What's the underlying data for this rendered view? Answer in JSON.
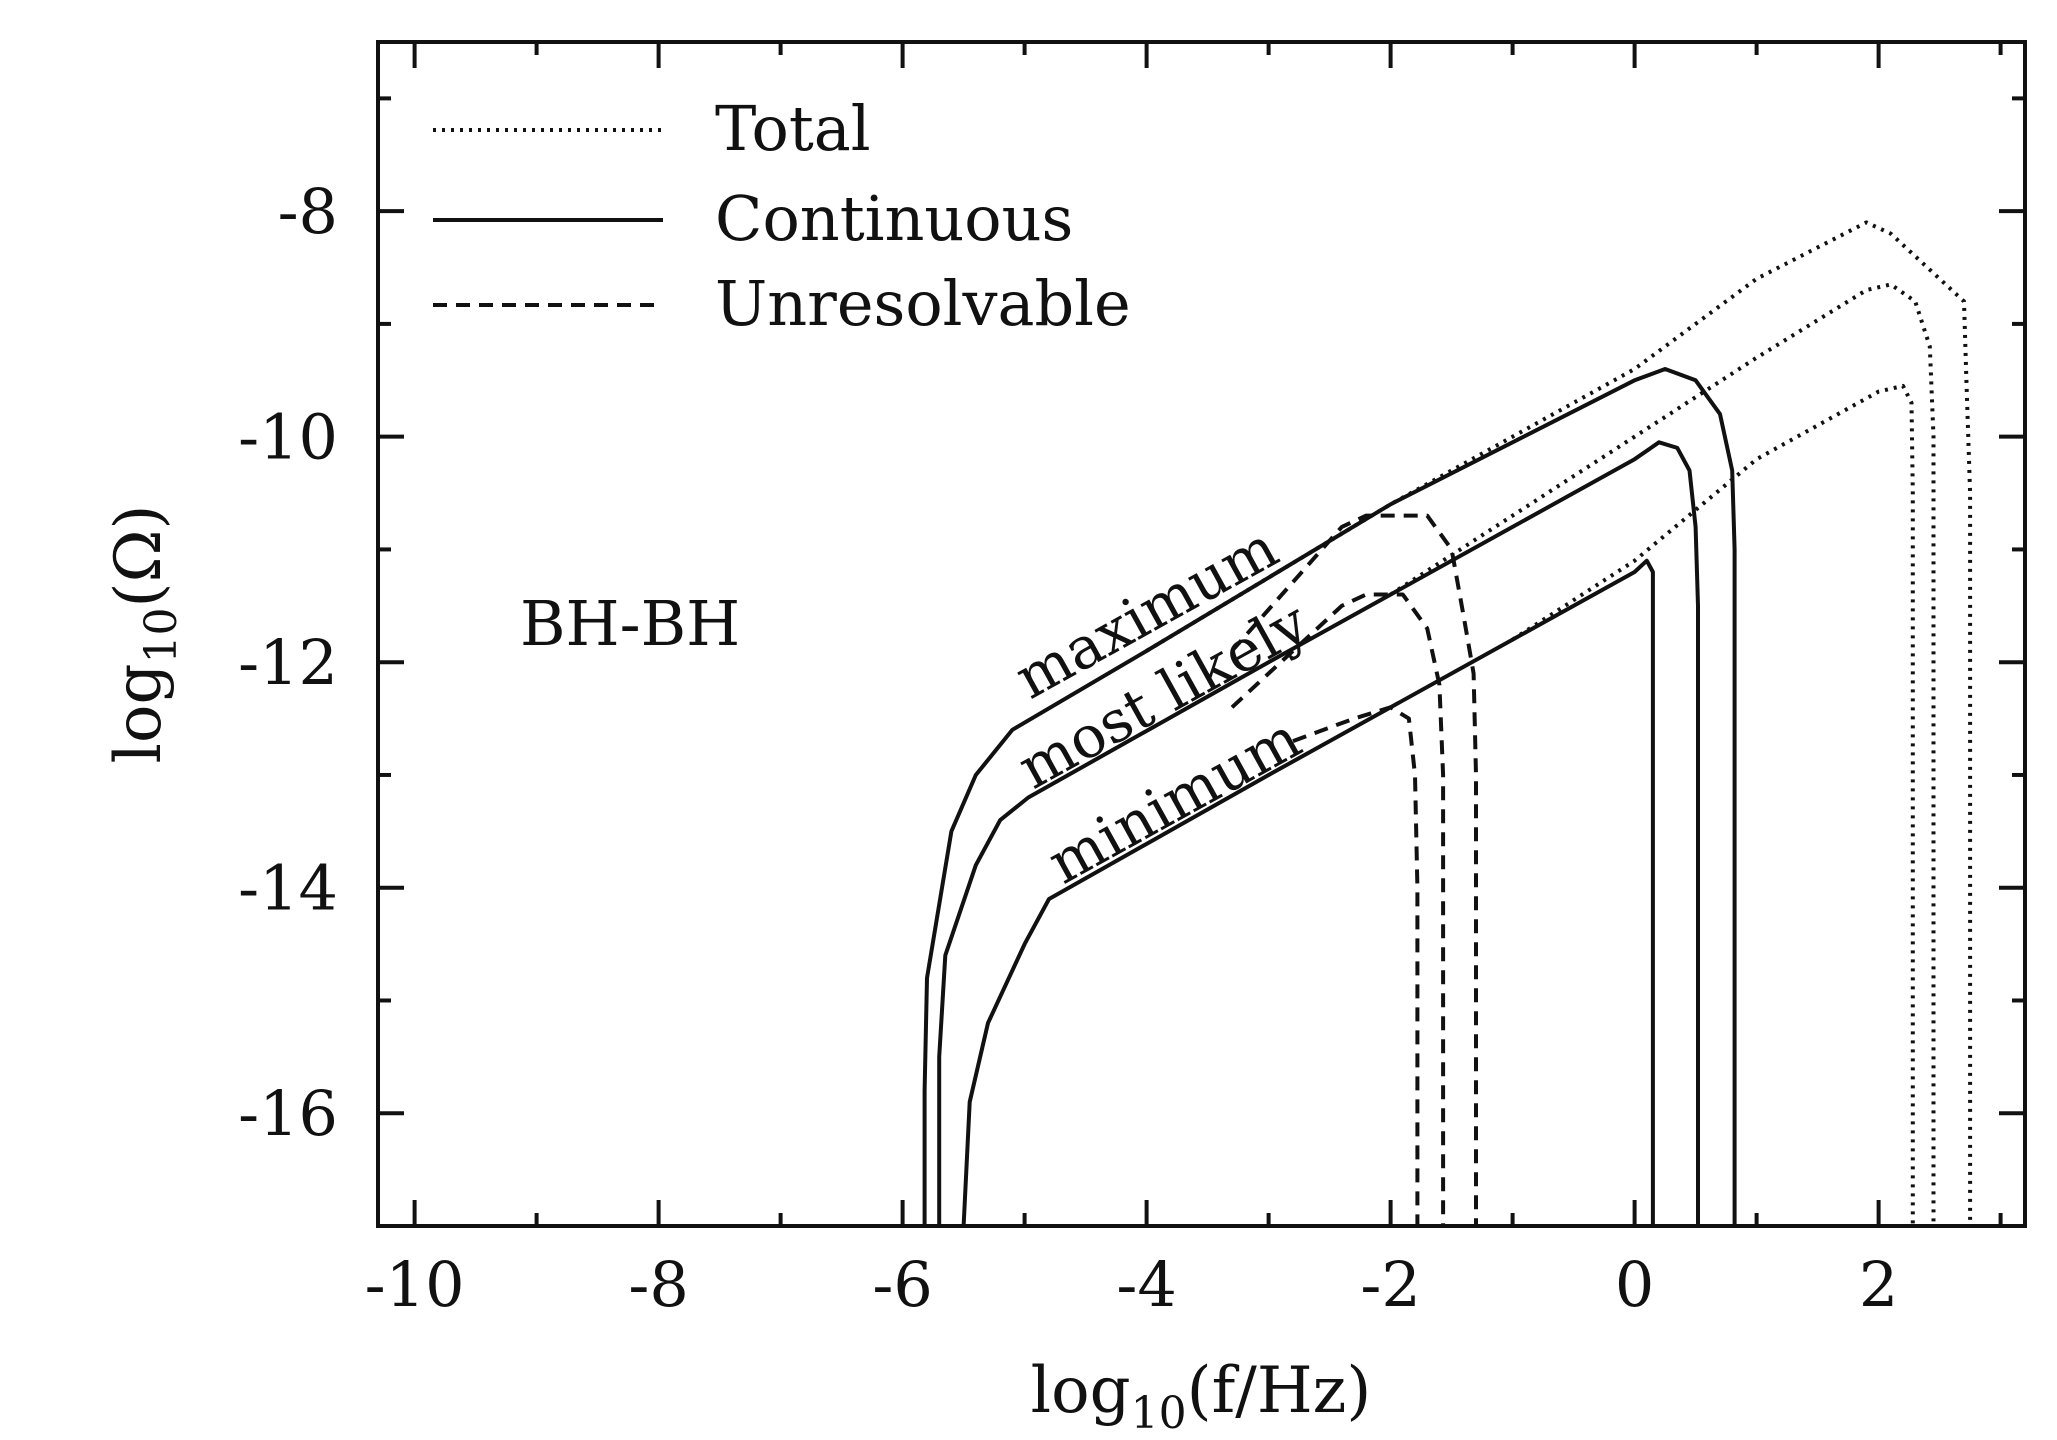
{
  "chart_data": {
    "type": "line",
    "xlabel_prefix": "log",
    "xlabel_sub": "10",
    "xlabel_arg": "(f/Hz)",
    "ylabel_prefix": "log",
    "ylabel_sub": "10",
    "ylabel_arg": "(Ω)",
    "xlim": [
      -10.3,
      3.2
    ],
    "ylim": [
      -17,
      -6.5
    ],
    "x_ticks": [
      -10,
      -8,
      -6,
      -4,
      -2,
      0,
      2
    ],
    "x_tick_labels": [
      "-10",
      "-8",
      "-6",
      "-4",
      "-2",
      "0",
      "2"
    ],
    "x_minor_ticks": [
      -9,
      -7,
      -5,
      -3,
      -1,
      1,
      3
    ],
    "y_ticks": [
      -16,
      -14,
      -12,
      -10,
      -8
    ],
    "y_tick_labels": [
      "-16",
      "-14",
      "-12",
      "-10",
      "-8"
    ],
    "y_minor_ticks": [
      -17,
      -15,
      -13,
      -11,
      -9,
      -7
    ],
    "grid": false,
    "legend_position": "top-left",
    "legend": [
      {
        "label": "Total",
        "style": "dotted"
      },
      {
        "label": "Continuous",
        "style": "solid"
      },
      {
        "label": "Unresolvable",
        "style": "dashed"
      }
    ],
    "annotations": [
      {
        "text": "BH-BH",
        "x": -9.0,
        "y": -11.8
      },
      {
        "text": "maximum",
        "x": -4.0,
        "y": -11.9,
        "angle": -26
      },
      {
        "text": "most likely",
        "x": -3.5,
        "y": -12.3,
        "angle": -26
      },
      {
        "text": "minimum",
        "x": -3.5,
        "y": -13.2,
        "angle": -26
      }
    ],
    "series": [
      {
        "label": "maximum",
        "type": "Continuous",
        "style": "solid",
        "points": [
          [
            -5.82,
            -17
          ],
          [
            -5.82,
            -15.8
          ],
          [
            -5.8,
            -14.8
          ],
          [
            -5.6,
            -13.5
          ],
          [
            -5.4,
            -13.0
          ],
          [
            -5.1,
            -12.6
          ],
          [
            -4.0,
            -11.9
          ],
          [
            -2.0,
            -10.6
          ],
          [
            0.0,
            -9.5
          ],
          [
            0.25,
            -9.4
          ],
          [
            0.5,
            -9.5
          ],
          [
            0.7,
            -9.8
          ],
          [
            0.8,
            -10.3
          ],
          [
            0.82,
            -11.0
          ],
          [
            0.82,
            -17
          ]
        ]
      },
      {
        "label": "most likely",
        "type": "Continuous",
        "style": "solid",
        "points": [
          [
            -5.7,
            -17
          ],
          [
            -5.7,
            -15.5
          ],
          [
            -5.65,
            -14.6
          ],
          [
            -5.4,
            -13.8
          ],
          [
            -5.2,
            -13.4
          ],
          [
            -4.97,
            -13.2
          ],
          [
            -3.0,
            -12.0
          ],
          [
            -1.0,
            -10.8
          ],
          [
            0.0,
            -10.2
          ],
          [
            0.2,
            -10.05
          ],
          [
            0.35,
            -10.1
          ],
          [
            0.45,
            -10.3
          ],
          [
            0.5,
            -10.8
          ],
          [
            0.52,
            -11.5
          ],
          [
            0.52,
            -17
          ]
        ]
      },
      {
        "label": "minimum",
        "type": "Continuous",
        "style": "solid",
        "points": [
          [
            -5.5,
            -17
          ],
          [
            -5.45,
            -15.9
          ],
          [
            -5.3,
            -15.2
          ],
          [
            -5.0,
            -14.5
          ],
          [
            -4.8,
            -14.1
          ],
          [
            -3.0,
            -13.0
          ],
          [
            -1.0,
            -11.8
          ],
          [
            0.0,
            -11.2
          ],
          [
            0.1,
            -11.1
          ],
          [
            0.15,
            -11.2
          ],
          [
            0.15,
            -12.0
          ],
          [
            0.15,
            -17
          ]
        ]
      },
      {
        "label": "maximum",
        "type": "Unresolvable",
        "style": "dashed",
        "points": [
          [
            -3.3,
            -11.9
          ],
          [
            -2.4,
            -10.8
          ],
          [
            -2.2,
            -10.7
          ],
          [
            -1.7,
            -10.7
          ],
          [
            -1.5,
            -11.0
          ],
          [
            -1.4,
            -11.6
          ],
          [
            -1.32,
            -12.1
          ],
          [
            -1.3,
            -13.0
          ],
          [
            -1.3,
            -17
          ]
        ]
      },
      {
        "label": "most likely",
        "type": "Unresolvable",
        "style": "dashed",
        "points": [
          [
            -3.3,
            -12.4
          ],
          [
            -2.4,
            -11.5
          ],
          [
            -2.2,
            -11.4
          ],
          [
            -1.9,
            -11.4
          ],
          [
            -1.7,
            -11.7
          ],
          [
            -1.6,
            -12.2
          ],
          [
            -1.57,
            -13.0
          ],
          [
            -1.57,
            -17
          ]
        ]
      },
      {
        "label": "minimum",
        "type": "Unresolvable",
        "style": "dashed",
        "points": [
          [
            -2.8,
            -12.7
          ],
          [
            -2.3,
            -12.5
          ],
          [
            -2.0,
            -12.4
          ],
          [
            -1.85,
            -12.5
          ],
          [
            -1.8,
            -13.0
          ],
          [
            -1.78,
            -14.0
          ],
          [
            -1.78,
            -17
          ]
        ]
      },
      {
        "label": "maximum",
        "type": "Total",
        "style": "dotted",
        "points": [
          [
            -4.0,
            -11.9
          ],
          [
            -2.0,
            -10.6
          ],
          [
            0.0,
            -9.4
          ],
          [
            1.0,
            -8.6
          ],
          [
            1.9,
            -8.1
          ],
          [
            2.1,
            -8.2
          ],
          [
            2.4,
            -8.5
          ],
          [
            2.7,
            -8.8
          ],
          [
            2.72,
            -9.5
          ],
          [
            2.75,
            -10.5
          ],
          [
            2.75,
            -17
          ]
        ]
      },
      {
        "label": "most likely",
        "type": "Total",
        "style": "dotted",
        "points": [
          [
            -2.0,
            -11.4
          ],
          [
            0.0,
            -10.0
          ],
          [
            1.0,
            -9.3
          ],
          [
            1.9,
            -8.7
          ],
          [
            2.1,
            -8.65
          ],
          [
            2.3,
            -8.8
          ],
          [
            2.42,
            -9.2
          ],
          [
            2.45,
            -10.0
          ],
          [
            2.45,
            -17
          ]
        ]
      },
      {
        "label": "minimum",
        "type": "Total",
        "style": "dotted",
        "points": [
          [
            -1.0,
            -11.8
          ],
          [
            0.0,
            -11.1
          ],
          [
            1.0,
            -10.2
          ],
          [
            2.0,
            -9.6
          ],
          [
            2.2,
            -9.55
          ],
          [
            2.27,
            -9.7
          ],
          [
            2.28,
            -10.5
          ],
          [
            2.28,
            -17
          ]
        ]
      }
    ]
  }
}
